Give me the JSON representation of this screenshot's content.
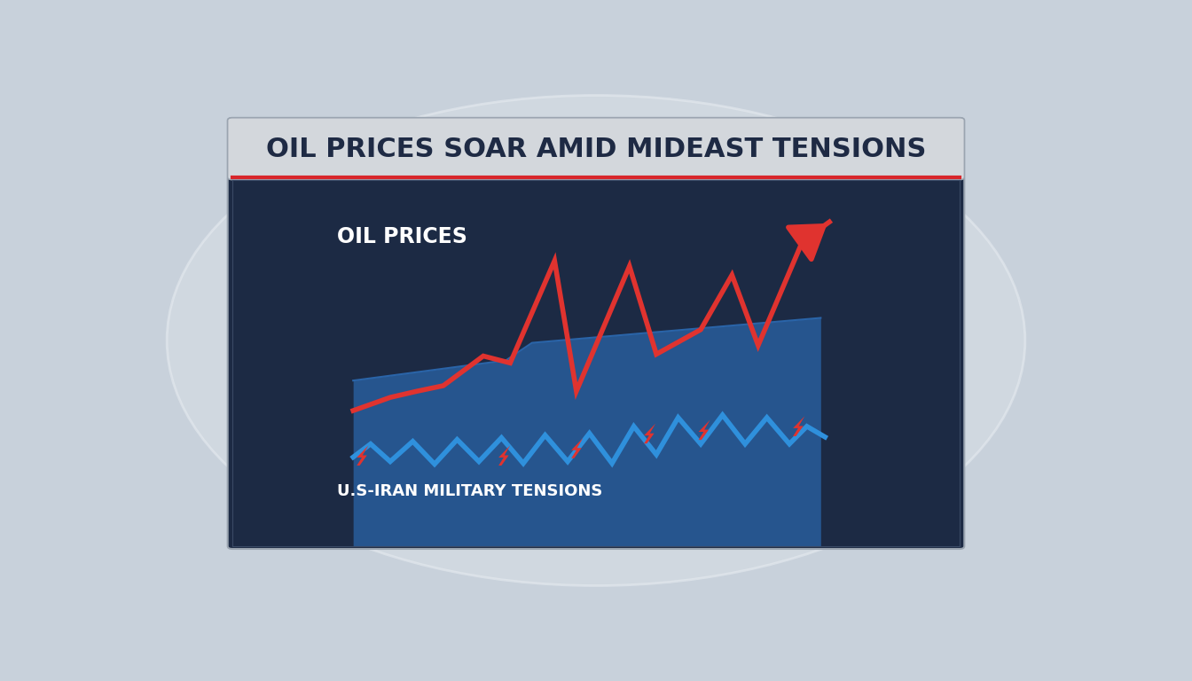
{
  "chart_data": {
    "type": "line",
    "title": "OIL PRICES SOAR AMID MIDEAST TENSIONS",
    "annotations": [
      "OIL PRICES",
      "U.S-IRAN MILITARY TENSIONS"
    ],
    "xlim": [
      0,
      100
    ],
    "ylim": [
      0,
      100
    ],
    "xticks": [],
    "yticks": [],
    "tick_labels": false,
    "grid": false,
    "series": [
      {
        "type": "area",
        "color": "#2a64a8",
        "x": [
          16.6,
          37.6,
          41.2,
          80.9
        ],
        "values": [
          45.2,
          50.7,
          55.5,
          62.3
        ]
      },
      {
        "type": "line",
        "color": "#2f90dc",
        "x": [
          16.6,
          19.0,
          21.7,
          24.8,
          27.8,
          30.9,
          33.9,
          37.0,
          40.0,
          43.0,
          46.1,
          49.1,
          52.2,
          55.2,
          58.3,
          61.3,
          64.4,
          67.4,
          70.5,
          73.5,
          76.6,
          79.0,
          81.5
        ],
        "values": [
          24.3,
          27.9,
          23.1,
          28.6,
          22.4,
          29.1,
          23.1,
          29.6,
          22.6,
          30.3,
          23.1,
          30.8,
          22.6,
          32.7,
          25.0,
          35.1,
          27.9,
          35.8,
          27.9,
          35.1,
          27.9,
          32.7,
          29.8
        ]
      },
      {
        "type": "line",
        "color": "#e0332f",
        "x": [
          16.6,
          21.7,
          25.4,
          29.0,
          34.5,
          38.2,
          44.3,
          47.3,
          54.6,
          58.3,
          64.4,
          68.7,
          72.3,
          78.4,
          82.1
        ],
        "values": [
          37.0,
          40.6,
          42.3,
          43.8,
          51.9,
          50.0,
          77.9,
          42.3,
          76.4,
          52.4,
          59.1,
          74.0,
          54.8,
          83.2,
          88.5
        ]
      }
    ]
  }
}
